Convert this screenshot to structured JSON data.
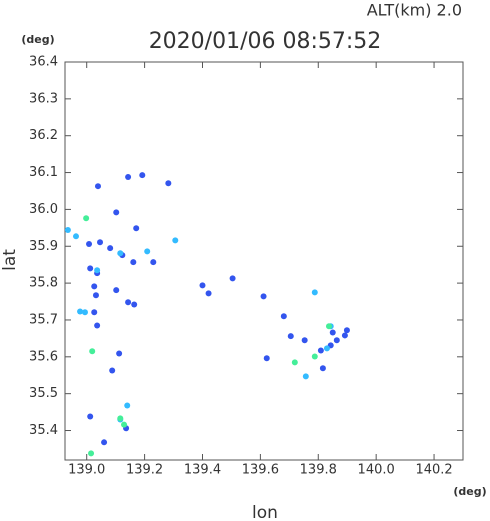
{
  "chart_data": {
    "type": "scatter",
    "title": "2020/01/06 08:57:52",
    "subtitle": "ALT(km)  2.0",
    "x_label": "lon",
    "y_label": "lat",
    "x_unit": "(deg)",
    "y_unit": "(deg)",
    "xlim": [
      138.925,
      140.3
    ],
    "ylim": [
      35.32,
      36.4
    ],
    "xticks": [
      {
        "value": 139,
        "label": "139.0"
      },
      139.2,
      139.4,
      139.6,
      139.8,
      {
        "value": 140,
        "label": "140.0"
      },
      140.2
    ],
    "yticks": [
      36.4,
      36.3,
      36.2,
      36.1,
      {
        "value": 36,
        "label": "36.0"
      },
      35.9,
      35.8,
      35.7,
      35.6,
      35.5,
      35.4
    ],
    "series": [
      {
        "color": "#3355ee",
        "x": [
          139.039,
          139.143,
          139.192,
          139.282,
          139.102,
          139.171,
          139.046,
          139.081,
          139.123,
          139.161,
          139.23,
          139.012,
          139.036,
          139.032,
          139.026,
          139.102,
          139.143,
          139.164,
          139.026,
          139.036,
          139.112,
          139.088,
          139.012,
          139.136,
          139.06,
          139.4,
          139.421,
          139.504,
          139.611,
          139.622,
          139.705,
          139.753,
          139.809,
          139.85,
          139.892,
          139.864,
          139.843,
          139.899,
          139.816,
          139.681,
          139.008
        ],
        "y": [
          36.063,
          36.088,
          36.093,
          36.071,
          35.992,
          35.949,
          35.911,
          35.895,
          35.876,
          35.857,
          35.857,
          35.84,
          35.827,
          35.767,
          35.791,
          35.781,
          35.748,
          35.742,
          35.721,
          35.685,
          35.609,
          35.563,
          35.438,
          35.406,
          35.368,
          35.794,
          35.772,
          35.813,
          35.764,
          35.596,
          35.656,
          35.645,
          35.617,
          35.666,
          35.658,
          35.645,
          35.631,
          35.672,
          35.569,
          35.71,
          35.906
        ]
      },
      {
        "color": "#33bbff",
        "x": [
          138.935,
          138.963,
          139.036,
          139.116,
          139.209,
          139.306,
          138.977,
          138.994,
          139.14,
          139.788,
          139.843,
          139.83,
          139.757,
          139.116
        ],
        "y": [
          35.944,
          35.927,
          35.835,
          35.881,
          35.886,
          35.916,
          35.723,
          35.721,
          35.468,
          35.775,
          35.683,
          35.623,
          35.547,
          35.43
        ]
      },
      {
        "color": "#44ee99",
        "x": [
          138.998,
          139.019,
          139.719,
          139.788,
          139.015,
          139.116,
          139.129,
          139.837
        ],
        "y": [
          35.976,
          35.615,
          35.585,
          35.601,
          35.338,
          35.433,
          35.416,
          35.683
        ]
      }
    ]
  }
}
